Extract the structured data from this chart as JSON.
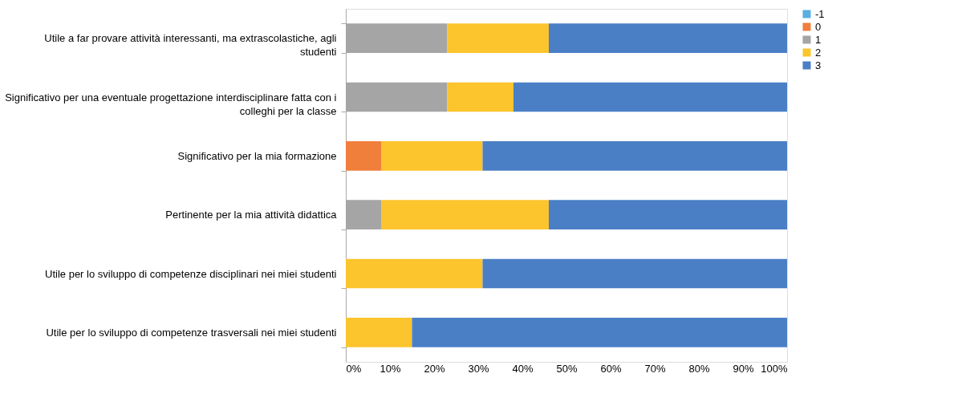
{
  "chart_data": {
    "type": "bar",
    "orientation": "horizontal",
    "stacked": true,
    "categories": [
      "Utile a far provare attività interessanti, ma extrascolastiche, agli studenti",
      "Significativo per una eventuale progettazione interdisciplinare fatta con i colleghi per la classe",
      "Significativo per la mia formazione",
      "Pertinente per la mia attività didattica",
      "Utile per lo sviluppo di competenze disciplinari nei miei studenti",
      "Utile per lo sviluppo di competenze trasversali nei miei studenti"
    ],
    "series": [
      {
        "name": "-1",
        "color": "#5aaee0",
        "values": [
          null,
          null,
          null,
          null,
          null,
          null
        ]
      },
      {
        "name": "0",
        "color": "#f07f3c",
        "values": [
          null,
          null,
          8,
          null,
          null,
          null
        ]
      },
      {
        "name": "1",
        "color": "#a5a5a5",
        "values": [
          23,
          23,
          null,
          8,
          null,
          null
        ]
      },
      {
        "name": "2",
        "color": "#fcc42d",
        "values": [
          23,
          15,
          23,
          38,
          31,
          15
        ]
      },
      {
        "name": "3",
        "color": "#4a7fc6",
        "values": [
          54,
          62,
          69,
          54,
          69,
          85
        ]
      }
    ],
    "xlim": [
      0,
      100
    ],
    "xticks": [
      {
        "value": 0,
        "label": "0%"
      },
      {
        "value": 10,
        "label": "10%"
      },
      {
        "value": 20,
        "label": "20%"
      },
      {
        "value": 30,
        "label": "30%"
      },
      {
        "value": 40,
        "label": "40%"
      },
      {
        "value": 50,
        "label": "50%"
      },
      {
        "value": 60,
        "label": "60%"
      },
      {
        "value": 70,
        "label": "70%"
      },
      {
        "value": 80,
        "label": "80%"
      },
      {
        "value": 90,
        "label": "90%"
      },
      {
        "value": 100,
        "label": "100%"
      }
    ],
    "grid": false,
    "legend": "right"
  }
}
